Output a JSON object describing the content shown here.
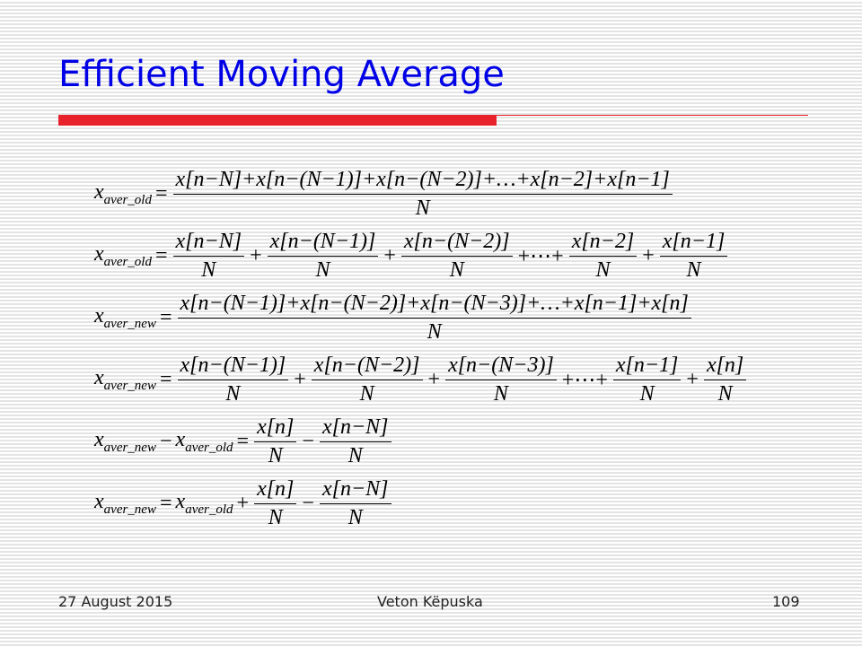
{
  "header": {
    "title": "Efficient Moving Average"
  },
  "equations": [
    [
      {
        "var": "x",
        "sub": "aver_old"
      },
      {
        "op": "="
      },
      {
        "num": "x[n−N]+x[n−(N−1)]+x[n−(N−2)]+…+x[n−2]+x[n−1]",
        "den": "N"
      }
    ],
    [
      {
        "var": "x",
        "sub": "aver_old"
      },
      {
        "op": "="
      },
      {
        "num": "x[n−N]",
        "den": "N"
      },
      {
        "op": "+"
      },
      {
        "num": "x[n−(N−1)]",
        "den": "N"
      },
      {
        "op": "+"
      },
      {
        "num": "x[n−(N−2)]",
        "den": "N"
      },
      {
        "op": "+⋯+"
      },
      {
        "num": "x[n−2]",
        "den": "N"
      },
      {
        "op": "+"
      },
      {
        "num": "x[n−1]",
        "den": "N"
      }
    ],
    [
      {
        "var": "x",
        "sub": "aver_new"
      },
      {
        "op": "="
      },
      {
        "num": "x[n−(N−1)]+x[n−(N−2)]+x[n−(N−3)]+…+x[n−1]+x[n]",
        "den": "N"
      }
    ],
    [
      {
        "var": "x",
        "sub": "aver_new"
      },
      {
        "op": "="
      },
      {
        "num": "x[n−(N−1)]",
        "den": "N"
      },
      {
        "op": "+"
      },
      {
        "num": "x[n−(N−2)]",
        "den": "N"
      },
      {
        "op": "+"
      },
      {
        "num": "x[n−(N−3)]",
        "den": "N"
      },
      {
        "op": "+⋯+"
      },
      {
        "num": "x[n−1]",
        "den": "N"
      },
      {
        "op": "+"
      },
      {
        "num": "x[n]",
        "den": "N"
      }
    ],
    [
      {
        "var": "x",
        "sub": "aver_new"
      },
      {
        "op": "−"
      },
      {
        "var": "x",
        "sub": "aver_old"
      },
      {
        "op": "="
      },
      {
        "num": "x[n]",
        "den": "N"
      },
      {
        "op": "−"
      },
      {
        "num": "x[n−N]",
        "den": "N"
      }
    ],
    [
      {
        "var": "x",
        "sub": "aver_new"
      },
      {
        "op": "="
      },
      {
        "var": "x",
        "sub": "aver_old"
      },
      {
        "op": "+"
      },
      {
        "num": "x[n]",
        "den": "N"
      },
      {
        "op": "−"
      },
      {
        "num": "x[n−N]",
        "den": "N"
      }
    ]
  ],
  "footer": {
    "date": "27 August 2015",
    "author": "Veton Këpuska",
    "page": "109"
  }
}
